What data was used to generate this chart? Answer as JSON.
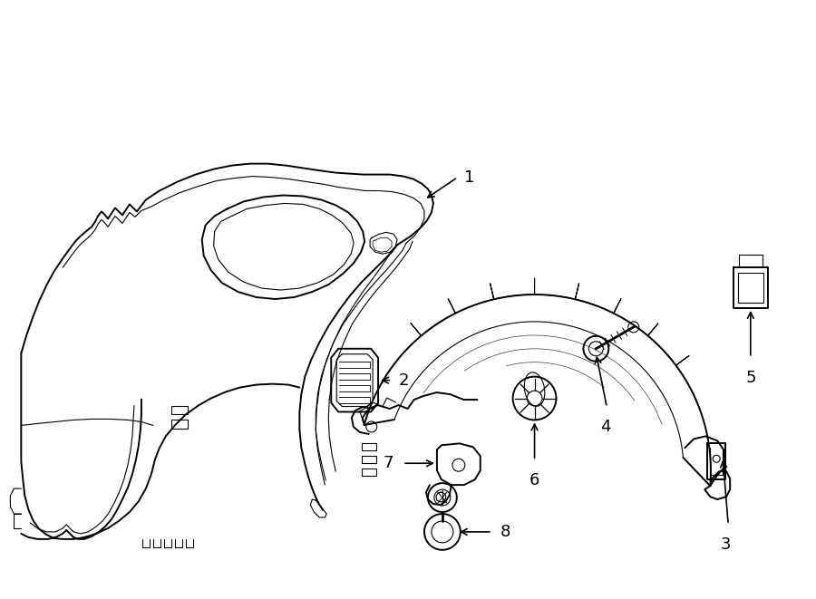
{
  "background_color": "#ffffff",
  "line_color": "#000000",
  "fig_width": 9.0,
  "fig_height": 6.61,
  "dpi": 100,
  "lw_main": 1.4,
  "lw_thin": 0.8,
  "label_fontsize": 13
}
